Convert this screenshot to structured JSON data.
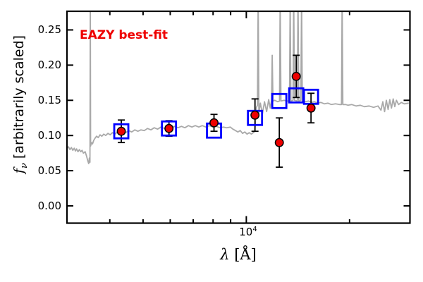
{
  "annotation": {
    "text": "EAZY best-fit",
    "color": "#ee0000"
  },
  "axes": {
    "xlabel": {
      "symbol": "λ",
      "unit": " [Å]"
    },
    "ylabel": {
      "symbol": "f",
      "subscript": "ν",
      "rest": " [arbitrarily scaled]"
    },
    "x_tick_label": {
      "base": "10",
      "exponent": "4"
    },
    "y_tick_labels": [
      "0.00",
      "0.05",
      "0.10",
      "0.15",
      "0.20",
      "0.25"
    ]
  },
  "colors": {
    "spectrum": "#a9a9a9",
    "model_square": "#0000ff",
    "observed_fill": "#ee0000",
    "observed_edge": "#000000",
    "axis": "#000000",
    "background": "#ffffff"
  },
  "chart_data": {
    "type": "line",
    "title": "",
    "annotation": "EAZY best-fit",
    "xlabel": "λ [Å]",
    "ylabel": "f_ν [arbitrarily scaled]",
    "x_scale": "log",
    "xlim": [
      3000,
      30000
    ],
    "ylim": [
      -0.0245,
      0.2765
    ],
    "grid": false,
    "legend": "none",
    "y_ticks": [
      0.0,
      0.05,
      0.1,
      0.15,
      0.2,
      0.25
    ],
    "x_major_ticks": [
      10000
    ],
    "x_minor_ticks": [
      4000,
      5000,
      6000,
      7000,
      8000,
      9000,
      20000
    ],
    "series": [
      {
        "name": "best-fit model spectrum",
        "type": "line",
        "color": "#a9a9a9",
        "points": [
          [
            3000,
            0.082
          ],
          [
            3030,
            0.084
          ],
          [
            3060,
            0.08
          ],
          [
            3090,
            0.083
          ],
          [
            3120,
            0.079
          ],
          [
            3150,
            0.082
          ],
          [
            3175,
            0.078
          ],
          [
            3200,
            0.081
          ],
          [
            3230,
            0.077
          ],
          [
            3260,
            0.08
          ],
          [
            3290,
            0.077
          ],
          [
            3320,
            0.079
          ],
          [
            3350,
            0.075
          ],
          [
            3390,
            0.077
          ],
          [
            3420,
            0.071
          ],
          [
            3450,
            0.064
          ],
          [
            3470,
            0.06
          ],
          [
            3485,
            0.068
          ],
          [
            3500,
            0.062
          ],
          [
            3508,
            0.3
          ],
          [
            3516,
            0.085
          ],
          [
            3535,
            0.09
          ],
          [
            3560,
            0.088
          ],
          [
            3590,
            0.093
          ],
          [
            3620,
            0.096
          ],
          [
            3660,
            0.099
          ],
          [
            3700,
            0.097
          ],
          [
            3745,
            0.101
          ],
          [
            3790,
            0.099
          ],
          [
            3840,
            0.102
          ],
          [
            3890,
            0.1
          ],
          [
            3950,
            0.103
          ],
          [
            4010,
            0.101
          ],
          [
            4070,
            0.104
          ],
          [
            4140,
            0.102
          ],
          [
            4210,
            0.105
          ],
          [
            4290,
            0.103
          ],
          [
            4370,
            0.106
          ],
          [
            4450,
            0.104
          ],
          [
            4540,
            0.107
          ],
          [
            4630,
            0.105
          ],
          [
            4730,
            0.108
          ],
          [
            4830,
            0.106
          ],
          [
            4930,
            0.108
          ],
          [
            5040,
            0.107
          ],
          [
            5150,
            0.11
          ],
          [
            5270,
            0.108
          ],
          [
            5390,
            0.111
          ],
          [
            5510,
            0.109
          ],
          [
            5640,
            0.112
          ],
          [
            5770,
            0.11
          ],
          [
            5900,
            0.112
          ],
          [
            6040,
            0.11
          ],
          [
            6180,
            0.113
          ],
          [
            6320,
            0.111
          ],
          [
            6470,
            0.113
          ],
          [
            6620,
            0.111
          ],
          [
            6780,
            0.114
          ],
          [
            6940,
            0.112
          ],
          [
            7100,
            0.114
          ],
          [
            7270,
            0.112
          ],
          [
            7440,
            0.114
          ],
          [
            7620,
            0.112
          ],
          [
            7800,
            0.114
          ],
          [
            7990,
            0.112
          ],
          [
            8180,
            0.113
          ],
          [
            8370,
            0.111
          ],
          [
            8570,
            0.112
          ],
          [
            8770,
            0.111
          ],
          [
            8980,
            0.112
          ],
          [
            9140,
            0.109
          ],
          [
            9300,
            0.107
          ],
          [
            9450,
            0.105
          ],
          [
            9600,
            0.107
          ],
          [
            9750,
            0.103
          ],
          [
            9900,
            0.105
          ],
          [
            10050,
            0.102
          ],
          [
            10200,
            0.104
          ],
          [
            10350,
            0.102
          ],
          [
            10480,
            0.104
          ],
          [
            10580,
            0.106
          ],
          [
            10700,
            0.14
          ],
          [
            10780,
            0.143
          ],
          [
            10830,
            0.3
          ],
          [
            10880,
            0.132
          ],
          [
            10990,
            0.146
          ],
          [
            11140,
            0.131
          ],
          [
            11300,
            0.148
          ],
          [
            11460,
            0.134
          ],
          [
            11620,
            0.151
          ],
          [
            11740,
            0.139
          ],
          [
            11850,
            0.15
          ],
          [
            11900,
            0.214
          ],
          [
            11960,
            0.149
          ],
          [
            12100,
            0.15
          ],
          [
            12350,
            0.148
          ],
          [
            12500,
            0.149
          ],
          [
            12550,
            0.3
          ],
          [
            12620,
            0.149
          ],
          [
            12900,
            0.15
          ],
          [
            13100,
            0.149
          ],
          [
            13360,
            0.149
          ],
          [
            13425,
            0.3
          ],
          [
            13490,
            0.149
          ],
          [
            13680,
            0.15
          ],
          [
            13748,
            0.3
          ],
          [
            13820,
            0.15
          ],
          [
            14080,
            0.149
          ],
          [
            14148,
            0.3
          ],
          [
            14220,
            0.149
          ],
          [
            14420,
            0.15
          ],
          [
            14492,
            0.3
          ],
          [
            14560,
            0.149
          ],
          [
            14900,
            0.148
          ],
          [
            15200,
            0.149
          ],
          [
            15500,
            0.147
          ],
          [
            15800,
            0.148
          ],
          [
            16150,
            0.146
          ],
          [
            16500,
            0.147
          ],
          [
            16900,
            0.145
          ],
          [
            17300,
            0.146
          ],
          [
            17700,
            0.144
          ],
          [
            18200,
            0.145
          ],
          [
            18700,
            0.144
          ],
          [
            18950,
            0.144
          ],
          [
            19030,
            0.3
          ],
          [
            19120,
            0.144
          ],
          [
            19500,
            0.144
          ],
          [
            19800,
            0.143
          ],
          [
            20300,
            0.144
          ],
          [
            20900,
            0.142
          ],
          [
            21500,
            0.143
          ],
          [
            22100,
            0.141
          ],
          [
            22800,
            0.142
          ],
          [
            23500,
            0.14
          ],
          [
            24200,
            0.142
          ],
          [
            24700,
            0.136
          ],
          [
            25000,
            0.148
          ],
          [
            25300,
            0.134
          ],
          [
            25600,
            0.15
          ],
          [
            25900,
            0.137
          ],
          [
            26200,
            0.151
          ],
          [
            26500,
            0.139
          ],
          [
            26800,
            0.152
          ],
          [
            27100,
            0.141
          ],
          [
            27400,
            0.15
          ],
          [
            27800,
            0.144
          ],
          [
            28300,
            0.147
          ],
          [
            28900,
            0.145
          ],
          [
            29740,
            0.146
          ]
        ]
      },
      {
        "name": "template model photometry",
        "type": "scatter",
        "marker": "open-square",
        "color": "#0000ff",
        "points": [
          [
            4320,
            0.106
          ],
          [
            5950,
            0.11
          ],
          [
            8050,
            0.107
          ],
          [
            10600,
            0.125
          ],
          [
            12480,
            0.149
          ],
          [
            13980,
            0.157
          ],
          [
            15440,
            0.155
          ]
        ]
      },
      {
        "name": "observed photometry",
        "type": "scatter",
        "marker": "circle",
        "color": "#ee0000",
        "edge_color": "#000000",
        "points_format": [
          "lambda",
          "flux",
          "error"
        ],
        "points": [
          [
            4320,
            0.106,
            0.016
          ],
          [
            5950,
            0.11,
            0.011
          ],
          [
            8050,
            0.118,
            0.012
          ],
          [
            10600,
            0.129,
            0.023
          ],
          [
            12480,
            0.09,
            0.035
          ],
          [
            13980,
            0.184,
            0.03
          ],
          [
            15440,
            0.139,
            0.021
          ]
        ]
      }
    ]
  }
}
